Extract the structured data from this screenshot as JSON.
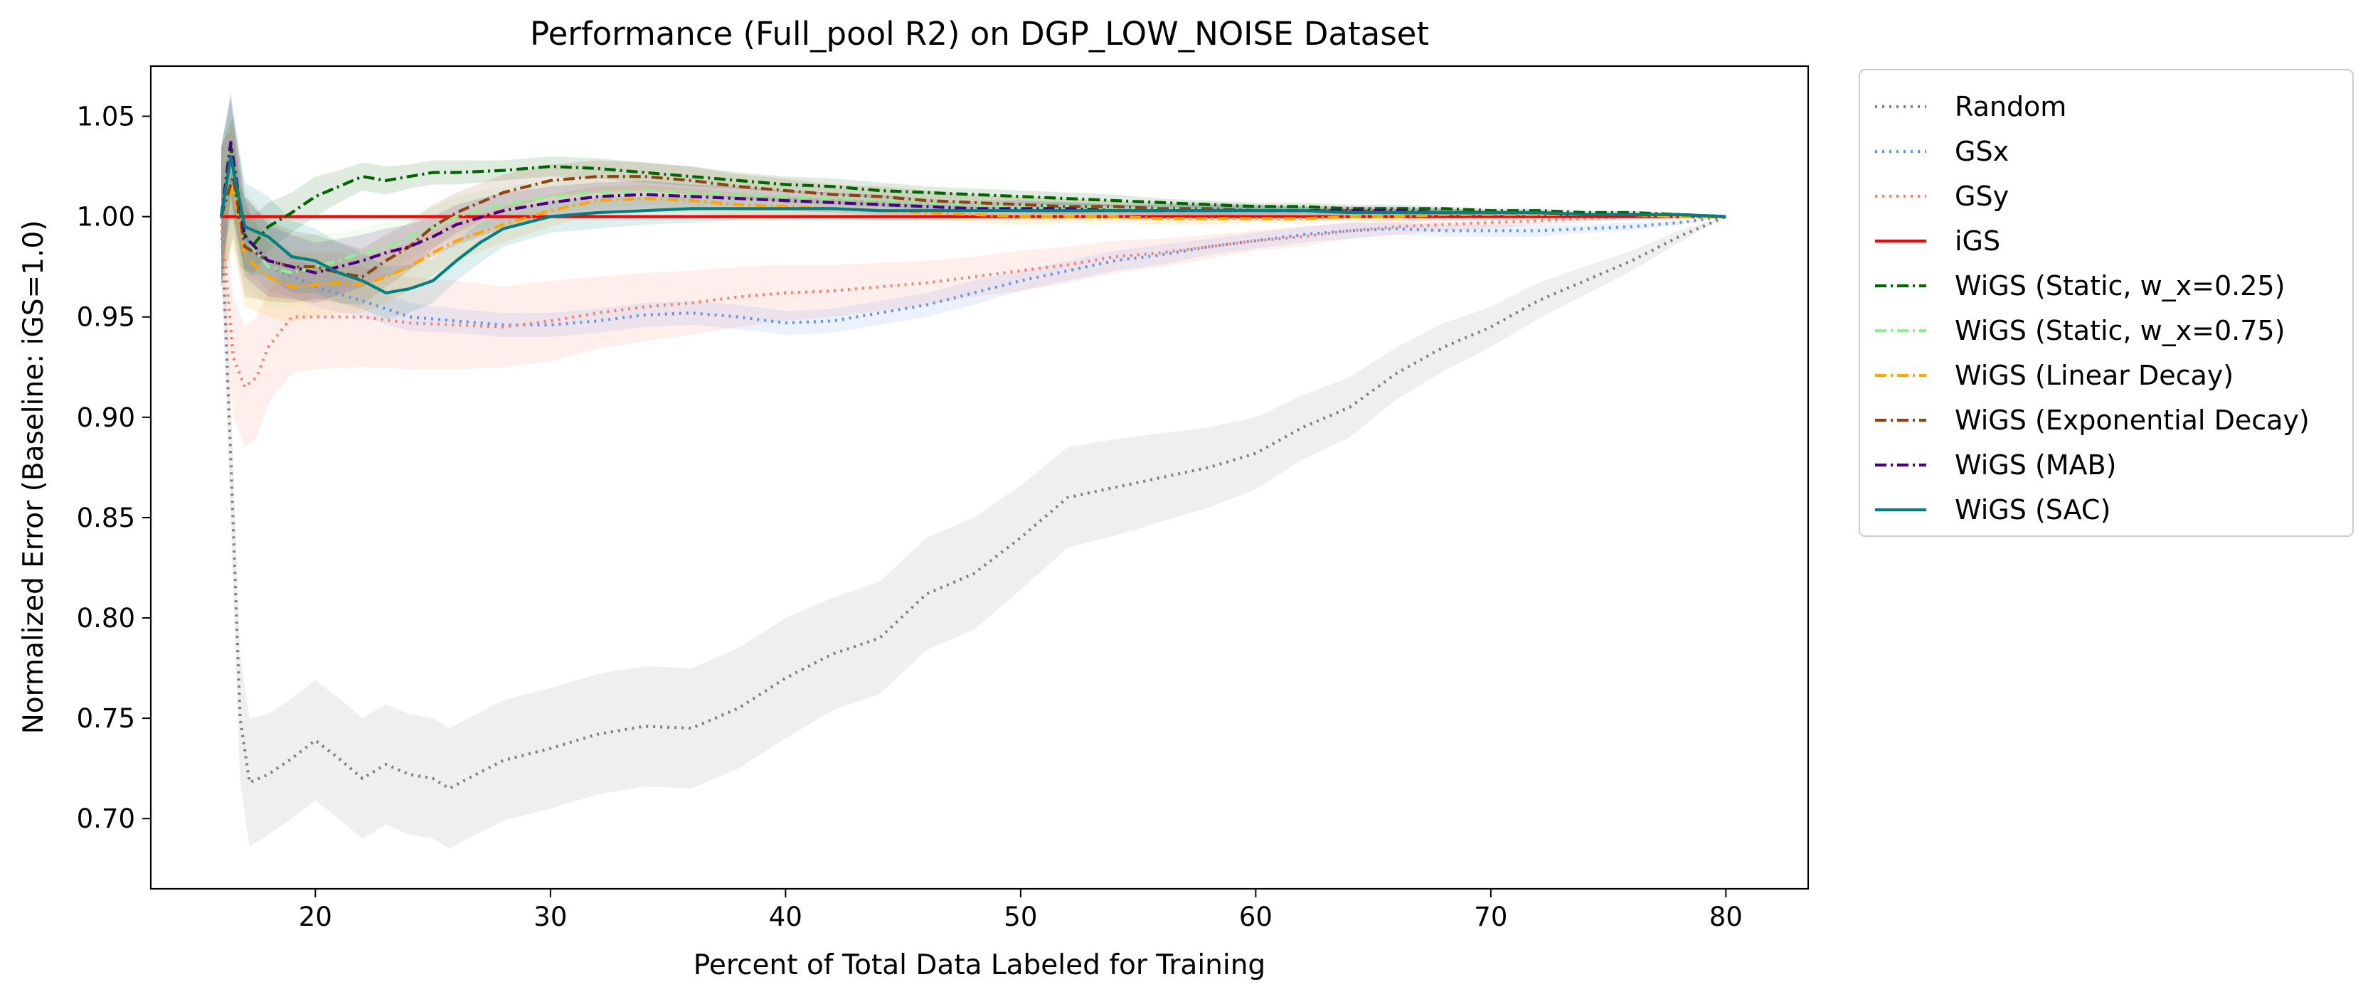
{
  "chart_data": {
    "type": "line",
    "title": "Performance (Full_pool R2) on DGP_LOW_NOISE Dataset",
    "xlabel": "Percent of Total Data Labeled for Training",
    "ylabel": "Normalized Error (Baseline: iGS=1.0)",
    "xlim": [
      13,
      83.5
    ],
    "ylim": [
      0.665,
      1.075
    ],
    "xticks": [
      20,
      30,
      40,
      50,
      60,
      70,
      80
    ],
    "xtick_labels": [
      "20",
      "30",
      "40",
      "50",
      "60",
      "70",
      "80"
    ],
    "yticks": [
      0.7,
      0.75,
      0.8,
      0.85,
      0.9,
      0.95,
      1.0,
      1.05
    ],
    "ytick_labels": [
      "0.70",
      "0.75",
      "0.80",
      "0.85",
      "0.90",
      "0.95",
      "1.00",
      "1.05"
    ],
    "grid": false,
    "legend_placement": "outside upper right",
    "series": [
      {
        "name": "Random",
        "color": "#808080",
        "dash": "dotted",
        "x": [
          16,
          16.4,
          16.8,
          17.2,
          18,
          19,
          20,
          21,
          22,
          23,
          24,
          25,
          25.7,
          26.5,
          28,
          30,
          32,
          34,
          36,
          38,
          40,
          42,
          44,
          46,
          48,
          50,
          52,
          54,
          56,
          58,
          60,
          62,
          64,
          66,
          68,
          70,
          72,
          74,
          76,
          78,
          80
        ],
        "y": [
          1.0,
          0.88,
          0.75,
          0.718,
          0.722,
          0.73,
          0.739,
          0.73,
          0.72,
          0.727,
          0.722,
          0.72,
          0.715,
          0.72,
          0.729,
          0.735,
          0.742,
          0.746,
          0.745,
          0.755,
          0.77,
          0.782,
          0.79,
          0.812,
          0.822,
          0.84,
          0.86,
          0.865,
          0.87,
          0.875,
          0.882,
          0.895,
          0.905,
          0.922,
          0.935,
          0.945,
          0.958,
          0.968,
          0.978,
          0.99,
          1.0
        ],
        "band": [
          0.025,
          0.03,
          0.032,
          0.032,
          0.03,
          0.03,
          0.03,
          0.03,
          0.03,
          0.03,
          0.03,
          0.03,
          0.03,
          0.03,
          0.03,
          0.03,
          0.03,
          0.03,
          0.03,
          0.03,
          0.03,
          0.028,
          0.028,
          0.028,
          0.028,
          0.026,
          0.025,
          0.024,
          0.022,
          0.02,
          0.018,
          0.016,
          0.015,
          0.013,
          0.012,
          0.01,
          0.009,
          0.007,
          0.005,
          0.003,
          0.0
        ]
      },
      {
        "name": "GSx",
        "color": "#6495ED",
        "dash": "dotted",
        "x": [
          16,
          16.5,
          17,
          18,
          19,
          20,
          22,
          24,
          26,
          28,
          30,
          32,
          34,
          36,
          38,
          40,
          42,
          44,
          46,
          48,
          50,
          52,
          54,
          56,
          58,
          60,
          62,
          64,
          66,
          68,
          70,
          72,
          74,
          76,
          78,
          80
        ],
        "y": [
          1.0,
          1.02,
          0.99,
          0.975,
          0.97,
          0.965,
          0.958,
          0.95,
          0.948,
          0.946,
          0.946,
          0.948,
          0.951,
          0.952,
          0.95,
          0.947,
          0.948,
          0.952,
          0.956,
          0.962,
          0.968,
          0.973,
          0.978,
          0.981,
          0.985,
          0.988,
          0.991,
          0.993,
          0.994,
          0.993,
          0.993,
          0.993,
          0.994,
          0.995,
          0.997,
          1.0
        ],
        "band": [
          0.02,
          0.02,
          0.015,
          0.012,
          0.01,
          0.01,
          0.008,
          0.007,
          0.006,
          0.006,
          0.006,
          0.006,
          0.006,
          0.006,
          0.006,
          0.006,
          0.006,
          0.006,
          0.006,
          0.006,
          0.005,
          0.005,
          0.005,
          0.005,
          0.004,
          0.004,
          0.004,
          0.004,
          0.003,
          0.003,
          0.003,
          0.003,
          0.002,
          0.002,
          0.001,
          0.0
        ]
      },
      {
        "name": "GSy",
        "color": "#FA8072",
        "dash": "dotted",
        "x": [
          16,
          16.5,
          17,
          17.5,
          18,
          19,
          20,
          22,
          24,
          26,
          28,
          30,
          32,
          34,
          36,
          38,
          40,
          42,
          44,
          46,
          48,
          50,
          52,
          54,
          56,
          58,
          60,
          62,
          64,
          66,
          68,
          70,
          72,
          74,
          76,
          78,
          80
        ],
        "y": [
          1.0,
          0.93,
          0.915,
          0.92,
          0.935,
          0.95,
          0.95,
          0.95,
          0.947,
          0.946,
          0.945,
          0.948,
          0.952,
          0.955,
          0.957,
          0.96,
          0.962,
          0.963,
          0.965,
          0.967,
          0.97,
          0.973,
          0.976,
          0.98,
          0.982,
          0.985,
          0.988,
          0.99,
          0.993,
          0.995,
          0.996,
          0.997,
          0.998,
          0.999,
          1.0,
          1.0,
          1.0
        ],
        "band": [
          0.03,
          0.03,
          0.03,
          0.03,
          0.028,
          0.028,
          0.026,
          0.025,
          0.023,
          0.022,
          0.02,
          0.02,
          0.018,
          0.017,
          0.016,
          0.015,
          0.014,
          0.013,
          0.012,
          0.011,
          0.01,
          0.01,
          0.009,
          0.008,
          0.007,
          0.006,
          0.005,
          0.005,
          0.004,
          0.004,
          0.003,
          0.003,
          0.002,
          0.002,
          0.001,
          0.0005,
          0.0
        ]
      },
      {
        "name": "iGS",
        "color": "#FF0000",
        "dash": "solid",
        "x": [
          16,
          80
        ],
        "y": [
          1.0,
          1.0
        ]
      },
      {
        "name": "WiGS (Static, w_x=0.25)",
        "color": "#006400",
        "dash": "dashdot",
        "x": [
          16,
          16.4,
          16.8,
          17.3,
          18,
          19,
          20,
          21,
          22,
          23,
          24,
          25,
          26,
          28,
          30,
          32,
          34,
          36,
          38,
          40,
          42,
          44,
          46,
          48,
          50,
          52,
          54,
          56,
          58,
          60,
          62,
          64,
          66,
          68,
          70,
          72,
          74,
          76,
          78,
          80
        ],
        "y": [
          1.0,
          1.035,
          0.995,
          0.985,
          0.995,
          1.002,
          1.01,
          1.015,
          1.02,
          1.018,
          1.02,
          1.022,
          1.022,
          1.023,
          1.025,
          1.024,
          1.022,
          1.02,
          1.018,
          1.016,
          1.015,
          1.013,
          1.012,
          1.011,
          1.01,
          1.009,
          1.008,
          1.007,
          1.006,
          1.005,
          1.005,
          1.004,
          1.004,
          1.004,
          1.003,
          1.003,
          1.002,
          1.002,
          1.001,
          1.0
        ],
        "band": [
          0.035,
          0.025,
          0.02,
          0.015,
          0.012,
          0.01,
          0.01,
          0.008,
          0.007,
          0.007,
          0.006,
          0.006,
          0.006,
          0.005,
          0.005,
          0.005,
          0.005,
          0.005,
          0.004,
          0.004,
          0.004,
          0.004,
          0.003,
          0.003,
          0.003,
          0.003,
          0.003,
          0.002,
          0.002,
          0.002,
          0.002,
          0.002,
          0.002,
          0.001,
          0.001,
          0.001,
          0.001,
          0.001,
          0.001,
          0.0
        ]
      },
      {
        "name": "WiGS (Static, w_x=0.75)",
        "color": "#90EE90",
        "dash": "dashdot",
        "x": [
          16,
          16.5,
          17,
          18,
          19,
          20,
          21,
          22,
          23,
          24,
          25,
          26,
          28,
          30,
          32,
          34,
          36,
          38,
          40,
          42,
          44,
          46,
          48,
          50,
          52,
          54,
          56,
          58,
          60,
          62,
          64,
          66,
          68,
          70,
          72,
          74,
          76,
          78,
          80
        ],
        "y": [
          1.0,
          1.02,
          0.99,
          0.975,
          0.972,
          0.975,
          0.978,
          0.982,
          0.985,
          0.99,
          0.995,
          1.0,
          1.006,
          1.01,
          1.012,
          1.013,
          1.012,
          1.011,
          1.01,
          1.009,
          1.008,
          1.007,
          1.006,
          1.005,
          1.005,
          1.004,
          1.004,
          1.003,
          1.003,
          1.003,
          1.002,
          1.002,
          1.002,
          1.002,
          1.001,
          1.001,
          1.001,
          1.0,
          1.0
        ],
        "band": [
          0.035,
          0.03,
          0.025,
          0.02,
          0.018,
          0.016,
          0.014,
          0.012,
          0.012,
          0.011,
          0.01,
          0.01,
          0.009,
          0.008,
          0.008,
          0.007,
          0.007,
          0.006,
          0.006,
          0.005,
          0.005,
          0.005,
          0.004,
          0.004,
          0.004,
          0.003,
          0.003,
          0.003,
          0.003,
          0.002,
          0.002,
          0.002,
          0.002,
          0.001,
          0.001,
          0.001,
          0.001,
          0.0005,
          0.0
        ]
      },
      {
        "name": "WiGS (Linear Decay)",
        "color": "#FFA500",
        "dash": "dashdot",
        "x": [
          16,
          16.5,
          17,
          18,
          19,
          20,
          21,
          22,
          23,
          24,
          25,
          26,
          28,
          30,
          32,
          34,
          36,
          38,
          40,
          42,
          44,
          46,
          48,
          50,
          52,
          54,
          56,
          58,
          60,
          62,
          64,
          66,
          68,
          70,
          72,
          74,
          76,
          78,
          80
        ],
        "y": [
          1.0,
          1.015,
          0.98,
          0.97,
          0.965,
          0.966,
          0.967,
          0.966,
          0.97,
          0.975,
          0.982,
          0.988,
          0.996,
          1.003,
          1.008,
          1.009,
          1.008,
          1.006,
          1.005,
          1.004,
          1.003,
          1.002,
          1.001,
          1.0,
          1.0,
          1.0,
          0.999,
          0.999,
          0.999,
          0.999,
          1.0,
          1.0,
          1.001,
          1.001,
          1.001,
          1.001,
          1.001,
          1.0,
          1.0
        ],
        "band": [
          0.035,
          0.03,
          0.025,
          0.02,
          0.018,
          0.016,
          0.015,
          0.014,
          0.013,
          0.012,
          0.011,
          0.01,
          0.009,
          0.008,
          0.007,
          0.007,
          0.006,
          0.006,
          0.005,
          0.005,
          0.005,
          0.004,
          0.004,
          0.004,
          0.003,
          0.003,
          0.003,
          0.003,
          0.002,
          0.002,
          0.002,
          0.002,
          0.002,
          0.001,
          0.001,
          0.001,
          0.001,
          0.0005,
          0.0
        ]
      },
      {
        "name": "WiGS (Exponential Decay)",
        "color": "#8B4513",
        "dash": "dashdot",
        "x": [
          16,
          16.5,
          17,
          18,
          19,
          20,
          21,
          22,
          23,
          24,
          25,
          26,
          28,
          30,
          32,
          34,
          36,
          38,
          40,
          42,
          44,
          46,
          48,
          50,
          52,
          54,
          56,
          58,
          60,
          62,
          64,
          66,
          68,
          70,
          72,
          74,
          76,
          78,
          80
        ],
        "y": [
          1.0,
          1.02,
          0.985,
          0.978,
          0.975,
          0.975,
          0.972,
          0.97,
          0.978,
          0.985,
          0.995,
          1.002,
          1.012,
          1.018,
          1.02,
          1.02,
          1.018,
          1.015,
          1.013,
          1.011,
          1.01,
          1.008,
          1.007,
          1.006,
          1.005,
          1.005,
          1.004,
          1.004,
          1.003,
          1.003,
          1.003,
          1.002,
          1.002,
          1.002,
          1.002,
          1.001,
          1.001,
          1.001,
          1.0
        ],
        "band": [
          0.035,
          0.03,
          0.025,
          0.02,
          0.018,
          0.016,
          0.015,
          0.014,
          0.013,
          0.012,
          0.011,
          0.01,
          0.009,
          0.008,
          0.008,
          0.007,
          0.007,
          0.006,
          0.006,
          0.005,
          0.005,
          0.005,
          0.004,
          0.004,
          0.004,
          0.003,
          0.003,
          0.003,
          0.003,
          0.002,
          0.002,
          0.002,
          0.002,
          0.001,
          0.001,
          0.001,
          0.001,
          0.0005,
          0.0
        ]
      },
      {
        "name": "WiGS (MAB)",
        "color": "#4B0082",
        "dash": "dashdot",
        "x": [
          16,
          16.4,
          17,
          18,
          19,
          20,
          21,
          22,
          23,
          24,
          25,
          26,
          28,
          30,
          32,
          34,
          36,
          38,
          40,
          42,
          44,
          46,
          48,
          50,
          52,
          54,
          56,
          58,
          60,
          62,
          64,
          66,
          68,
          70,
          72,
          74,
          76,
          78,
          80
        ],
        "y": [
          1.0,
          1.037,
          0.99,
          0.978,
          0.975,
          0.972,
          0.975,
          0.978,
          0.982,
          0.985,
          0.99,
          0.996,
          1.003,
          1.007,
          1.01,
          1.011,
          1.01,
          1.009,
          1.008,
          1.007,
          1.006,
          1.005,
          1.004,
          1.004,
          1.004,
          1.003,
          1.003,
          1.003,
          1.003,
          1.003,
          1.003,
          1.003,
          1.002,
          1.002,
          1.002,
          1.001,
          1.001,
          1.001,
          1.0
        ],
        "band": [
          0.035,
          0.025,
          0.02,
          0.018,
          0.016,
          0.015,
          0.014,
          0.013,
          0.012,
          0.011,
          0.01,
          0.01,
          0.009,
          0.008,
          0.007,
          0.007,
          0.006,
          0.006,
          0.005,
          0.005,
          0.005,
          0.004,
          0.004,
          0.004,
          0.003,
          0.003,
          0.003,
          0.003,
          0.002,
          0.002,
          0.002,
          0.002,
          0.002,
          0.001,
          0.001,
          0.001,
          0.001,
          0.0005,
          0.0
        ]
      },
      {
        "name": "WiGS (SAC)",
        "color": "#008080",
        "dash": "solid",
        "x": [
          16,
          16.4,
          17,
          18,
          19,
          20,
          21,
          22,
          23,
          24,
          25,
          26,
          27,
          28,
          30,
          32,
          34,
          36,
          38,
          40,
          42,
          44,
          46,
          48,
          50,
          52,
          54,
          56,
          58,
          60,
          62,
          64,
          66,
          68,
          70,
          72,
          74,
          76,
          78,
          80
        ],
        "y": [
          1.0,
          1.03,
          0.995,
          0.99,
          0.98,
          0.978,
          0.972,
          0.968,
          0.962,
          0.964,
          0.968,
          0.978,
          0.987,
          0.994,
          1.0,
          1.002,
          1.003,
          1.004,
          1.004,
          1.004,
          1.004,
          1.003,
          1.003,
          1.003,
          1.003,
          1.003,
          1.003,
          1.003,
          1.003,
          1.003,
          1.003,
          1.002,
          1.002,
          1.002,
          1.002,
          1.002,
          1.001,
          1.001,
          1.001,
          1.0
        ],
        "band": [
          0.035,
          0.028,
          0.022,
          0.02,
          0.018,
          0.016,
          0.015,
          0.014,
          0.013,
          0.012,
          0.011,
          0.01,
          0.01,
          0.009,
          0.008,
          0.008,
          0.007,
          0.007,
          0.006,
          0.006,
          0.005,
          0.005,
          0.005,
          0.004,
          0.004,
          0.004,
          0.003,
          0.003,
          0.003,
          0.003,
          0.002,
          0.002,
          0.002,
          0.002,
          0.001,
          0.001,
          0.001,
          0.001,
          0.0005,
          0.0
        ]
      }
    ]
  }
}
